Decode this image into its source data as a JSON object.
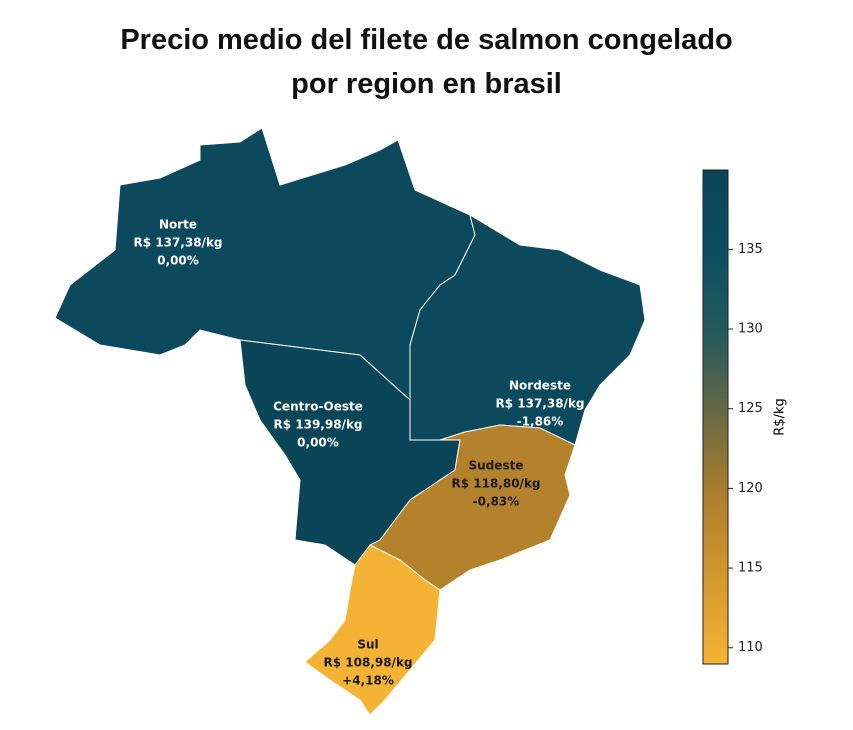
{
  "title": "Precio medio del filete de salmon congelado por region en brasil",
  "map": {
    "regions": [
      {
        "name": "Norte",
        "value": 137.38,
        "value_label": "R$ 137,38/kg",
        "change": "0,00%"
      },
      {
        "name": "Centro-Oeste",
        "value": 139.98,
        "value_label": "R$ 139,98/kg",
        "change": "0,00%"
      },
      {
        "name": "Nordeste",
        "value": 137.38,
        "value_label": "R$ 137,38/kg",
        "change": "-1,86%"
      },
      {
        "name": "Sudeste",
        "value": 118.8,
        "value_label": "R$ 118,80/kg",
        "change": "-0,83%"
      },
      {
        "name": "Sul",
        "value": 108.98,
        "value_label": "R$ 108,98/kg",
        "change": "+4,18%"
      }
    ]
  },
  "colorbar": {
    "label": "R$/kg",
    "lim": [
      108.98,
      139.98
    ],
    "ticks": [
      110,
      115,
      120,
      125,
      130,
      135
    ],
    "colors": [
      "#f5b335",
      "#d49a2f",
      "#b07f2c",
      "#6b6a43",
      "#255a5c",
      "#0c4d62",
      "#0b4558"
    ]
  }
}
